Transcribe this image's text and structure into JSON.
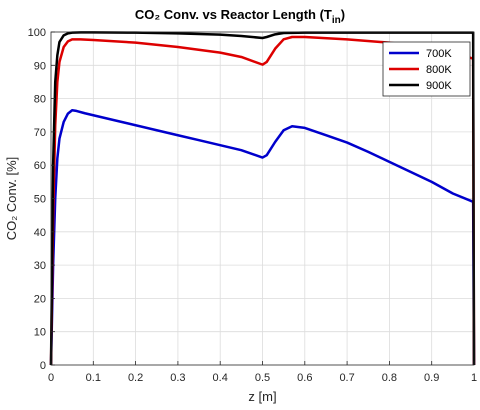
{
  "chart_data": {
    "type": "line",
    "title_main": "CO₂ Conv. vs Reactor Length (T",
    "title_sub": "in",
    "title_end": ")",
    "xlabel": "z [m]",
    "ylabel": "CO₂ Conv. [%]",
    "xlim": [
      0,
      1
    ],
    "ylim": [
      0,
      100
    ],
    "xticks": [
      0,
      0.1,
      0.2,
      0.3,
      0.4,
      0.5,
      0.6,
      0.7,
      0.8,
      0.9,
      1
    ],
    "xtick_labels": [
      "0",
      "0.1",
      "0.2",
      "0.3",
      "0.4",
      "0.5",
      "0.6",
      "0.7",
      "0.8",
      "0.9",
      "1"
    ],
    "yticks": [
      0,
      10,
      20,
      30,
      40,
      50,
      60,
      70,
      80,
      90,
      100
    ],
    "ytick_labels": [
      "0",
      "10",
      "20",
      "30",
      "40",
      "50",
      "60",
      "70",
      "80",
      "90",
      "100"
    ],
    "grid": true,
    "legend_position": "top-right",
    "series": [
      {
        "name": "700K",
        "color": "#0000cc",
        "x": [
          0,
          0.005,
          0.01,
          0.015,
          0.02,
          0.03,
          0.04,
          0.05,
          0.06,
          0.08,
          0.1,
          0.15,
          0.2,
          0.25,
          0.3,
          0.35,
          0.4,
          0.45,
          0.5,
          0.51,
          0.53,
          0.55,
          0.57,
          0.6,
          0.65,
          0.7,
          0.75,
          0.8,
          0.85,
          0.9,
          0.95,
          0.998,
          1
        ],
        "y": [
          0,
          30,
          50,
          62,
          68,
          73,
          75.5,
          76.5,
          76.3,
          75.6,
          75,
          73.5,
          72,
          70.5,
          69,
          67.5,
          66,
          64.5,
          62.3,
          63,
          67,
          70.5,
          71.7,
          71.2,
          69,
          66.8,
          64,
          61,
          58,
          55,
          51.5,
          49,
          0
        ]
      },
      {
        "name": "800K",
        "color": "#dd0000",
        "x": [
          0,
          0.005,
          0.01,
          0.015,
          0.02,
          0.03,
          0.04,
          0.05,
          0.07,
          0.1,
          0.2,
          0.3,
          0.4,
          0.45,
          0.5,
          0.51,
          0.53,
          0.55,
          0.57,
          0.6,
          0.7,
          0.8,
          0.9,
          0.95,
          0.998,
          1
        ],
        "y": [
          0,
          45,
          72,
          85,
          91,
          95.5,
          97.2,
          97.8,
          97.8,
          97.6,
          96.8,
          95.5,
          93.8,
          92.5,
          90.2,
          91,
          95,
          97.8,
          98.5,
          98.5,
          97.8,
          96.8,
          95.2,
          94,
          92,
          0
        ]
      },
      {
        "name": "900K",
        "color": "#000000",
        "x": [
          0,
          0.005,
          0.01,
          0.015,
          0.02,
          0.03,
          0.04,
          0.05,
          0.07,
          0.1,
          0.2,
          0.3,
          0.4,
          0.45,
          0.5,
          0.51,
          0.53,
          0.55,
          0.6,
          0.7,
          0.8,
          0.9,
          0.998,
          1
        ],
        "y": [
          0,
          60,
          85,
          93,
          97,
          99,
          99.6,
          99.8,
          99.9,
          99.9,
          99.8,
          99.6,
          99.2,
          98.8,
          98.2,
          98.5,
          99.3,
          99.7,
          99.8,
          99.8,
          99.8,
          99.8,
          99.8,
          0
        ]
      }
    ]
  }
}
